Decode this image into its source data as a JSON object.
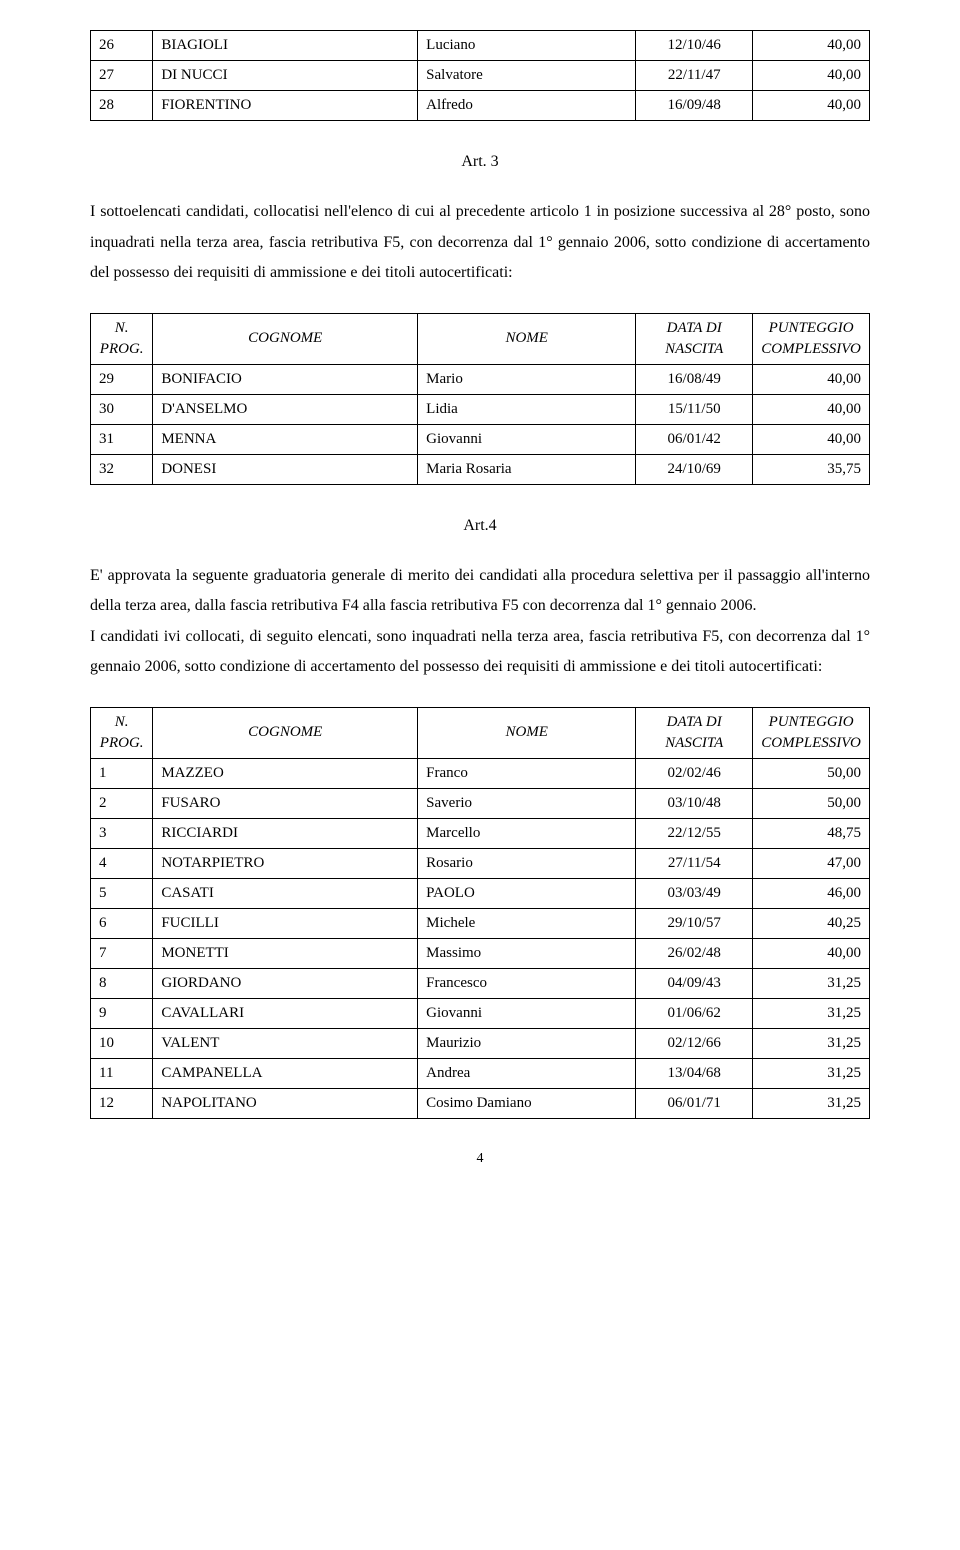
{
  "table1_rows": [
    {
      "n": "26",
      "cognome": "BIAGIOLI",
      "nome": "Luciano",
      "data": "12/10/46",
      "punt": "40,00"
    },
    {
      "n": "27",
      "cognome": "DI NUCCI",
      "nome": "Salvatore",
      "data": "22/11/47",
      "punt": "40,00"
    },
    {
      "n": "28",
      "cognome": "FIORENTINO",
      "nome": "Alfredo",
      "data": "16/09/48",
      "punt": "40,00"
    }
  ],
  "art3": {
    "title": "Art. 3",
    "text": "I sottoelencati candidati, collocatisi nell'elenco di cui al precedente articolo 1 in posizione successiva al 28° posto, sono inquadrati nella terza area, fascia retributiva F5, con decorrenza dal 1° gennaio 2006, sotto condizione di accertamento del possesso dei requisiti di ammissione e dei titoli autocertificati:"
  },
  "table2_header": {
    "nprog": "N. PROG.",
    "cognome": "COGNOME",
    "nome": "NOME",
    "data": "DATA DI NASCITA",
    "punt": "PUNTEGGIO COMPLESSIVO"
  },
  "table2_rows": [
    {
      "n": "29",
      "cognome": "BONIFACIO",
      "nome": "Mario",
      "data": "16/08/49",
      "punt": "40,00"
    },
    {
      "n": "30",
      "cognome": "D'ANSELMO",
      "nome": "Lidia",
      "data": "15/11/50",
      "punt": "40,00"
    },
    {
      "n": "31",
      "cognome": "MENNA",
      "nome": "Giovanni",
      "data": "06/01/42",
      "punt": "40,00"
    },
    {
      "n": "32",
      "cognome": "DONESI",
      "nome": "Maria Rosaria",
      "data": "24/10/69",
      "punt": "35,75"
    }
  ],
  "art4": {
    "title": "Art.4",
    "p1": "E' approvata la seguente graduatoria generale di merito dei candidati alla procedura selettiva per il passaggio all'interno della terza area, dalla fascia retributiva F4 alla fascia retributiva F5 con decorrenza dal 1° gennaio 2006.",
    "p2": "I candidati ivi collocati, di seguito elencati, sono inquadrati nella terza area, fascia retributiva F5, con decorrenza dal 1° gennaio 2006, sotto condizione di accertamento del possesso dei requisiti di ammissione e dei titoli autocertificati:"
  },
  "table3_header": {
    "nprog": "N. PROG.",
    "cognome": "COGNOME",
    "nome": "NOME",
    "data": "DATA DI NASCITA",
    "punt": "PUNTEGGIO COMPLESSIVO"
  },
  "table3_rows": [
    {
      "n": "1",
      "cognome": "MAZZEO",
      "nome": "Franco",
      "data": "02/02/46",
      "punt": "50,00"
    },
    {
      "n": "2",
      "cognome": "FUSARO",
      "nome": "Saverio",
      "data": "03/10/48",
      "punt": "50,00"
    },
    {
      "n": "3",
      "cognome": "RICCIARDI",
      "nome": "Marcello",
      "data": "22/12/55",
      "punt": "48,75"
    },
    {
      "n": "4",
      "cognome": "NOTARPIETRO",
      "nome": "Rosario",
      "data": "27/11/54",
      "punt": "47,00"
    },
    {
      "n": "5",
      "cognome": "CASATI",
      "nome": "PAOLO",
      "data": "03/03/49",
      "punt": "46,00"
    },
    {
      "n": "6",
      "cognome": "FUCILLI",
      "nome": "Michele",
      "data": "29/10/57",
      "punt": "40,25"
    },
    {
      "n": "7",
      "cognome": "MONETTI",
      "nome": "Massimo",
      "data": "26/02/48",
      "punt": "40,00"
    },
    {
      "n": "8",
      "cognome": "GIORDANO",
      "nome": "Francesco",
      "data": "04/09/43",
      "punt": "31,25"
    },
    {
      "n": "9",
      "cognome": "CAVALLARI",
      "nome": "Giovanni",
      "data": "01/06/62",
      "punt": "31,25"
    },
    {
      "n": "10",
      "cognome": "VALENT",
      "nome": "Maurizio",
      "data": "02/12/66",
      "punt": "31,25"
    },
    {
      "n": "11",
      "cognome": "CAMPANELLA",
      "nome": "Andrea",
      "data": "13/04/68",
      "punt": "31,25"
    },
    {
      "n": "12",
      "cognome": "NAPOLITANO",
      "nome": "Cosimo Damiano",
      "data": "06/01/71",
      "punt": "31,25"
    }
  ],
  "page_number": "4"
}
